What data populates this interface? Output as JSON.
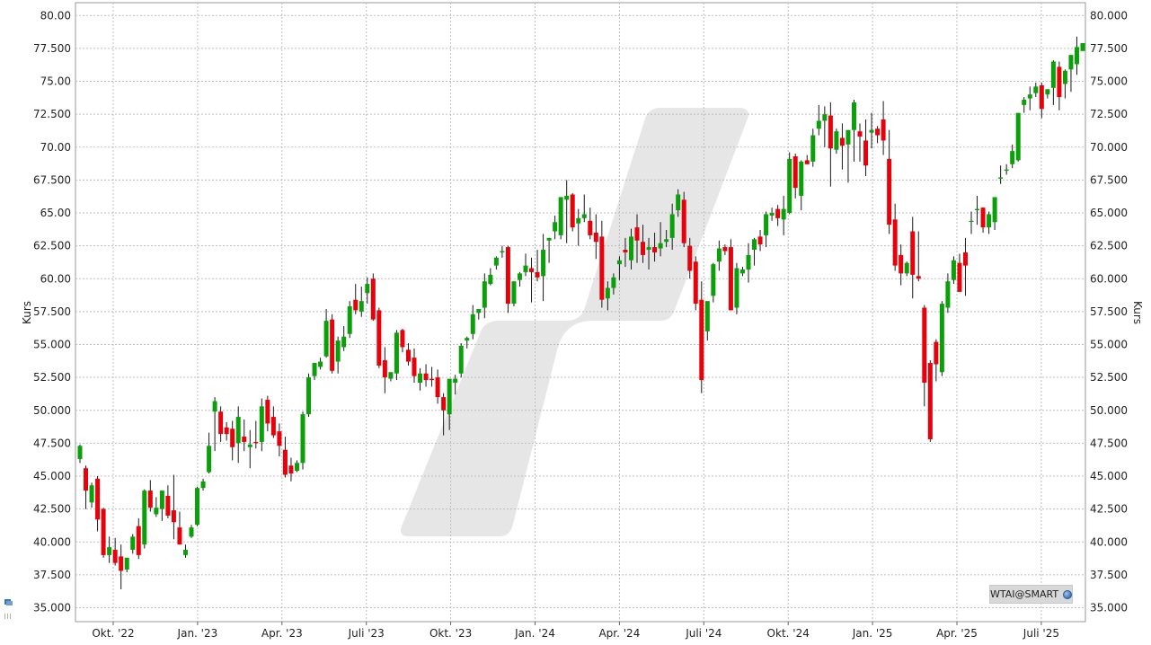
{
  "chart_data": {
    "type": "candlestick",
    "ylabel_left": "Kurs",
    "ylabel_right": "Kurs",
    "ylim": [
      34.0,
      80.5
    ],
    "yticks": [
      "35.000",
      "37.500",
      "40.000",
      "42.500",
      "45.000",
      "47.500",
      "50.000",
      "52.500",
      "55.000",
      "57.500",
      "60.00",
      "62.500",
      "65.00",
      "67.500",
      "70.00",
      "72.500",
      "75.00",
      "77.500",
      "80.00"
    ],
    "yticks_right": [
      "35.000",
      "37.500",
      "40.000",
      "42.500",
      "45.000",
      "47.500",
      "50.000",
      "52.500",
      "55.000",
      "57.500",
      "60.000",
      "62.500",
      "65.000",
      "67.500",
      "70.000",
      "72.500",
      "75.000",
      "77.500",
      "80.000"
    ],
    "xticks": [
      "Okt. '22",
      "Jan. '23",
      "Apr. '23",
      "Juli '23",
      "Okt. '23",
      "Jan. '24",
      "Apr. '24",
      "Juli '24",
      "Okt. '24",
      "Jan. '25",
      "Apr. '25",
      "Juli '25"
    ],
    "grid": true,
    "colors": {
      "up": "#0aa00a",
      "down": "#e8000b",
      "grid": "#bdbdbd",
      "watermark": "#e6e6e6"
    },
    "candles": [
      [
        46.3,
        47.4,
        46.0,
        47.3
      ],
      [
        45.6,
        45.8,
        42.5,
        43.9
      ],
      [
        43.0,
        44.5,
        42.6,
        44.3
      ],
      [
        44.8,
        45.0,
        40.8,
        41.7
      ],
      [
        42.5,
        42.6,
        38.8,
        39.0
      ],
      [
        39.0,
        40.4,
        38.4,
        39.6
      ],
      [
        39.4,
        40.3,
        38.2,
        38.4
      ],
      [
        38.9,
        39.8,
        36.4,
        37.8
      ],
      [
        37.9,
        38.8,
        37.7,
        38.8
      ],
      [
        39.4,
        40.6,
        39.1,
        40.4
      ],
      [
        41.2,
        41.8,
        38.7,
        39.0
      ],
      [
        39.8,
        44.0,
        39.5,
        43.9
      ],
      [
        43.9,
        44.7,
        42.3,
        42.6
      ],
      [
        42.1,
        43.4,
        41.9,
        42.6
      ],
      [
        42.5,
        43.8,
        41.6,
        43.9
      ],
      [
        43.5,
        44.3,
        41.8,
        42.0
      ],
      [
        42.4,
        45.1,
        40.2,
        41.5
      ],
      [
        41.1,
        42.3,
        39.8,
        39.8
      ],
      [
        39.0,
        39.8,
        38.8,
        39.4
      ],
      [
        40.4,
        41.3,
        40.3,
        41.1
      ],
      [
        41.3,
        44.2,
        41.2,
        44.1
      ],
      [
        44.1,
        44.8,
        43.9,
        44.6
      ],
      [
        45.3,
        48.3,
        45.2,
        47.3
      ],
      [
        49.9,
        51.0,
        46.9,
        50.7
      ],
      [
        49.9,
        50.3,
        47.6,
        48.2
      ],
      [
        48.7,
        49.1,
        47.7,
        48.2
      ],
      [
        48.6,
        49.2,
        46.2,
        47.2
      ],
      [
        47.5,
        50.3,
        46.0,
        49.5
      ],
      [
        48.0,
        49.3,
        46.9,
        47.6
      ],
      [
        47.2,
        48.5,
        45.6,
        47.4
      ],
      [
        47.6,
        49.2,
        47.1,
        47.5
      ],
      [
        47.6,
        50.9,
        46.9,
        50.3
      ],
      [
        50.8,
        51.1,
        48.4,
        49.0
      ],
      [
        49.5,
        50.3,
        47.9,
        48.1
      ],
      [
        48.4,
        49.0,
        46.5,
        47.3
      ],
      [
        47.0,
        48.0,
        44.9,
        45.1
      ],
      [
        45.8,
        46.4,
        44.6,
        45.2
      ],
      [
        45.4,
        46.2,
        45.3,
        46.0
      ],
      [
        46.0,
        49.9,
        45.5,
        49.7
      ],
      [
        49.7,
        52.8,
        49.5,
        52.5
      ],
      [
        52.6,
        53.6,
        52.3,
        53.6
      ],
      [
        53.3,
        54.0,
        53.1,
        53.7
      ],
      [
        54.1,
        57.7,
        54.0,
        56.8
      ],
      [
        56.9,
        57.3,
        52.8,
        53.0
      ],
      [
        53.7,
        55.6,
        52.8,
        55.3
      ],
      [
        54.8,
        56.4,
        54.5,
        55.6
      ],
      [
        55.8,
        58.3,
        55.5,
        57.9
      ],
      [
        58.4,
        59.6,
        57.3,
        57.6
      ],
      [
        57.5,
        59.4,
        57.1,
        58.3
      ],
      [
        58.9,
        60.1,
        58.1,
        59.6
      ],
      [
        60.0,
        60.4,
        56.8,
        56.9
      ],
      [
        57.6,
        57.8,
        53.2,
        53.4
      ],
      [
        53.8,
        54.8,
        51.3,
        52.5
      ],
      [
        52.4,
        52.9,
        52.2,
        52.9
      ],
      [
        52.8,
        56.1,
        52.3,
        55.9
      ],
      [
        56.1,
        56.2,
        54.4,
        54.8
      ],
      [
        54.6,
        55.1,
        53.4,
        53.7
      ],
      [
        54.0,
        54.7,
        52.1,
        52.6
      ],
      [
        52.1,
        53.2,
        51.5,
        52.8
      ],
      [
        52.8,
        53.5,
        51.8,
        52.3
      ],
      [
        52.4,
        53.3,
        51.8,
        52.3
      ],
      [
        52.5,
        53.1,
        50.5,
        51.0
      ],
      [
        51.0,
        51.3,
        48.1,
        50.0
      ],
      [
        49.7,
        52.2,
        48.5,
        52.4
      ],
      [
        52.1,
        52.7,
        51.2,
        52.4
      ],
      [
        52.8,
        55.1,
        52.5,
        54.9
      ],
      [
        55.3,
        55.6,
        54.7,
        55.5
      ],
      [
        55.8,
        58.0,
        55.4,
        57.3
      ],
      [
        57.4,
        57.6,
        56.9,
        57.7
      ],
      [
        57.8,
        60.4,
        57.0,
        59.8
      ],
      [
        59.6,
        60.8,
        59.5,
        60.3
      ],
      [
        61.0,
        61.7,
        60.7,
        61.6
      ],
      [
        62.0,
        62.5,
        61.6,
        62.1
      ],
      [
        62.4,
        62.5,
        57.4,
        58.1
      ],
      [
        58.1,
        59.8,
        57.9,
        59.8
      ],
      [
        59.9,
        60.5,
        59.4,
        60.4
      ],
      [
        60.5,
        61.9,
        60.2,
        61.0
      ],
      [
        60.8,
        61.6,
        58.2,
        60.5
      ],
      [
        60.5,
        62.2,
        59.8,
        60.1
      ],
      [
        60.2,
        63.4,
        58.3,
        62.2
      ],
      [
        62.9,
        63.1,
        61.2,
        63.1
      ],
      [
        63.6,
        64.8,
        63.0,
        64.3
      ],
      [
        63.3,
        65.9,
        63.0,
        66.2
      ],
      [
        66.0,
        67.5,
        62.7,
        66.3
      ],
      [
        66.4,
        66.5,
        63.6,
        63.9
      ],
      [
        64.2,
        65.3,
        62.5,
        64.6
      ],
      [
        64.6,
        66.4,
        64.3,
        64.9
      ],
      [
        64.4,
        65.4,
        63.0,
        63.3
      ],
      [
        63.5,
        64.9,
        61.5,
        62.8
      ],
      [
        63.2,
        64.4,
        57.8,
        58.4
      ],
      [
        58.5,
        59.8,
        57.6,
        59.3
      ],
      [
        59.3,
        60.4,
        58.8,
        60.1
      ],
      [
        61.1,
        61.7,
        59.9,
        61.4
      ],
      [
        62.2,
        63.1,
        60.9,
        62.0
      ],
      [
        61.4,
        63.8,
        60.7,
        63.2
      ],
      [
        63.9,
        64.9,
        61.2,
        62.9
      ],
      [
        62.8,
        64.1,
        61.2,
        61.8
      ],
      [
        62.2,
        63.1,
        60.7,
        62.4
      ],
      [
        62.4,
        63.5,
        61.3,
        62.0
      ],
      [
        62.3,
        64.3,
        61.7,
        62.7
      ],
      [
        62.8,
        63.7,
        62.4,
        63.0
      ],
      [
        63.1,
        65.7,
        62.2,
        64.9
      ],
      [
        65.2,
        66.8,
        64.7,
        66.4
      ],
      [
        66.0,
        66.6,
        62.4,
        62.7
      ],
      [
        62.5,
        63.1,
        60.0,
        60.6
      ],
      [
        61.3,
        61.7,
        57.6,
        58.1
      ],
      [
        58.4,
        59.8,
        51.3,
        52.3
      ],
      [
        56.0,
        57.9,
        55.3,
        58.3
      ],
      [
        58.7,
        61.2,
        58.2,
        61.1
      ],
      [
        61.3,
        62.9,
        60.6,
        62.3
      ],
      [
        62.4,
        62.6,
        61.8,
        62.1
      ],
      [
        62.4,
        63.0,
        57.6,
        57.6
      ],
      [
        57.8,
        61.2,
        57.3,
        60.8
      ],
      [
        60.4,
        60.9,
        60.2,
        60.7
      ],
      [
        60.7,
        62.7,
        59.7,
        61.8
      ],
      [
        62.2,
        63.1,
        61.0,
        63.0
      ],
      [
        63.2,
        63.7,
        62.1,
        62.6
      ],
      [
        63.3,
        65.1,
        62.4,
        64.9
      ],
      [
        64.8,
        65.4,
        64.4,
        65.0
      ],
      [
        65.3,
        65.6,
        64.0,
        64.6
      ],
      [
        64.5,
        66.3,
        63.3,
        65.3
      ],
      [
        65.0,
        69.6,
        64.9,
        69.1
      ],
      [
        69.3,
        69.5,
        66.1,
        66.9
      ],
      [
        66.3,
        69.0,
        65.2,
        68.9
      ],
      [
        69.0,
        69.4,
        68.7,
        68.7
      ],
      [
        68.9,
        71.4,
        68.5,
        70.9
      ],
      [
        71.4,
        73.2,
        70.9,
        72.0
      ],
      [
        72.0,
        73.1,
        70.0,
        72.5
      ],
      [
        72.4,
        73.4,
        67.0,
        69.9
      ],
      [
        69.8,
        71.4,
        69.5,
        71.2
      ],
      [
        70.7,
        71.8,
        68.3,
        70.1
      ],
      [
        70.2,
        71.2,
        67.3,
        71.3
      ],
      [
        71.3,
        73.6,
        68.9,
        73.4
      ],
      [
        71.2,
        71.8,
        68.9,
        70.8
      ],
      [
        70.5,
        72.1,
        67.8,
        68.6
      ],
      [
        71.1,
        72.6,
        69.9,
        71.3
      ],
      [
        71.4,
        71.6,
        70.3,
        70.9
      ],
      [
        72.1,
        73.5,
        69.4,
        70.5
      ],
      [
        69.1,
        71.3,
        63.4,
        64.1
      ],
      [
        64.5,
        65.7,
        60.6,
        61.0
      ],
      [
        61.8,
        62.6,
        59.5,
        60.4
      ],
      [
        60.4,
        61.3,
        60.2,
        61.2
      ],
      [
        63.6,
        64.7,
        58.5,
        60.3
      ],
      [
        60.2,
        63.6,
        59.8,
        60.0
      ],
      [
        57.8,
        58.0,
        50.3,
        52.1
      ],
      [
        53.6,
        53.8,
        47.6,
        47.8
      ],
      [
        55.2,
        55.4,
        52.2,
        53.5
      ],
      [
        52.9,
        58.3,
        52.6,
        58.1
      ],
      [
        57.8,
        60.4,
        57.4,
        59.8
      ],
      [
        59.9,
        61.7,
        59.6,
        61.4
      ],
      [
        61.2,
        61.9,
        59.1,
        59.0
      ],
      [
        62.0,
        63.1,
        58.7,
        61.0
      ],
      [
        64.4,
        65.1,
        63.4,
        64.4
      ],
      [
        65.2,
        66.3,
        64.1,
        65.3
      ],
      [
        65.4,
        65.4,
        63.5,
        63.9
      ],
      [
        63.9,
        65.1,
        63.4,
        64.9
      ],
      [
        64.3,
        66.1,
        63.7,
        66.2
      ],
      [
        67.6,
        68.6,
        67.2,
        67.7
      ],
      [
        68.2,
        68.7,
        67.9,
        68.3
      ],
      [
        68.7,
        70.2,
        68.4,
        69.7
      ],
      [
        69.0,
        72.4,
        68.9,
        72.6
      ],
      [
        73.2,
        73.8,
        72.6,
        73.6
      ],
      [
        73.7,
        74.6,
        72.8,
        74.0
      ],
      [
        74.1,
        74.9,
        73.8,
        74.6
      ],
      [
        74.7,
        74.9,
        72.2,
        72.9
      ],
      [
        74.0,
        74.4,
        73.7,
        74.4
      ],
      [
        74.5,
        76.6,
        73.2,
        76.5
      ],
      [
        76.1,
        76.5,
        72.8,
        73.8
      ],
      [
        74.8,
        75.9,
        73.7,
        75.8
      ],
      [
        75.9,
        77.0,
        74.2,
        77.0
      ],
      [
        76.3,
        78.4,
        75.5,
        77.6
      ],
      [
        77.3,
        77.8,
        77.4,
        77.9
      ]
    ]
  },
  "source_badge": {
    "label": "WTAI@SMART",
    "icon": "globe-icon"
  }
}
